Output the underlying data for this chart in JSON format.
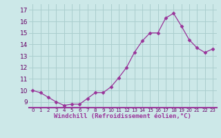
{
  "x": [
    0,
    1,
    2,
    3,
    4,
    5,
    6,
    7,
    8,
    9,
    10,
    11,
    12,
    13,
    14,
    15,
    16,
    17,
    18,
    19,
    20,
    21,
    22,
    23
  ],
  "y": [
    10.0,
    9.8,
    9.4,
    9.0,
    8.7,
    8.8,
    8.8,
    9.3,
    9.8,
    9.8,
    10.3,
    11.1,
    12.0,
    13.3,
    14.3,
    15.0,
    15.0,
    16.3,
    16.7,
    15.6,
    14.4,
    13.7,
    13.3,
    13.6
  ],
  "line_color": "#993399",
  "marker": "D",
  "marker_size": 2.5,
  "bg_color": "#cce8e8",
  "grid_color": "#aacece",
  "xlabel": "Windchill (Refroidissement éolien,°C)",
  "xlabel_color": "#993399",
  "ylabel_ticks": [
    9,
    10,
    11,
    12,
    13,
    14,
    15,
    16,
    17
  ],
  "ylim": [
    8.5,
    17.5
  ],
  "xlim": [
    -0.5,
    23.5
  ],
  "xtick_labels": [
    "0",
    "1",
    "2",
    "3",
    "4",
    "5",
    "6",
    "7",
    "8",
    "9",
    "10",
    "11",
    "12",
    "13",
    "14",
    "15",
    "16",
    "17",
    "18",
    "19",
    "20",
    "21",
    "22",
    "23"
  ]
}
